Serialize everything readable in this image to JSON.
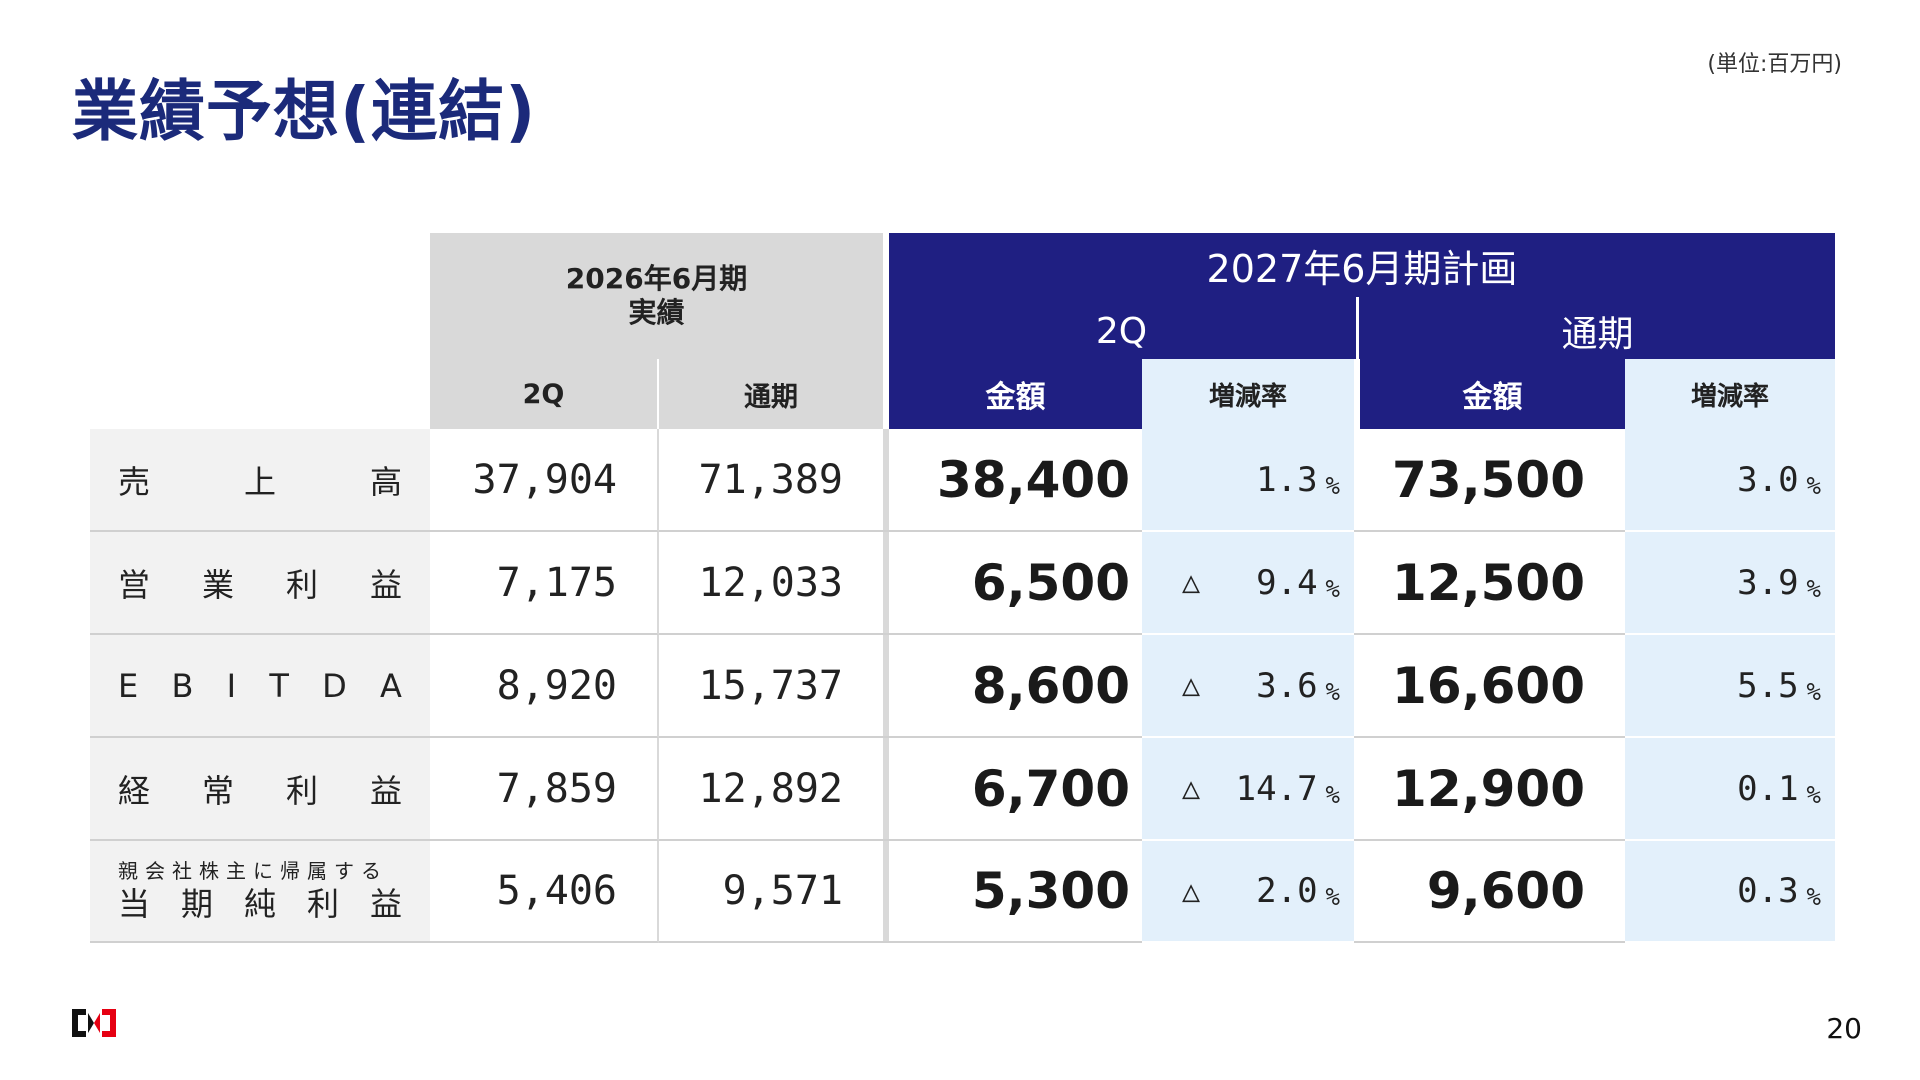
{
  "title": "業績予想(連結)",
  "unit": "(単位:百万円)",
  "page_number": "20",
  "header": {
    "fy2026_line1": "2026年6月期",
    "fy2026_line2": "実績",
    "fy2027": "2027年6月期計画",
    "q2": "2Q",
    "full_year": "通期",
    "col_2q": "2Q",
    "col_full": "通期",
    "col_amount_2q": "金額",
    "col_rate_2q": "増減率",
    "col_amount_full": "金額",
    "col_rate_full": "増減率"
  },
  "rows": [
    {
      "label_chars": [
        "売",
        "上",
        "高"
      ],
      "fy26_2q": "37,904",
      "fy26_full": "71,389",
      "fy27_2q": "38,400",
      "fy27_2q_tri": "",
      "fy27_2q_rate": "1.3",
      "fy27_full": "73,500",
      "fy27_full_rate": "3.0",
      "pct": "%"
    },
    {
      "label_chars": [
        "営",
        "業",
        "利",
        "益"
      ],
      "fy26_2q": "7,175",
      "fy26_full": "12,033",
      "fy27_2q": "6,500",
      "fy27_2q_tri": "△",
      "fy27_2q_rate": "9.4",
      "fy27_full": "12,500",
      "fy27_full_rate": "3.9",
      "pct": "%"
    },
    {
      "label_chars": [
        "E",
        "B",
        "I",
        "T",
        "D",
        "A"
      ],
      "fy26_2q": "8,920",
      "fy26_full": "15,737",
      "fy27_2q": "8,600",
      "fy27_2q_tri": "△",
      "fy27_2q_rate": "3.6",
      "fy27_full": "16,600",
      "fy27_full_rate": "5.5",
      "pct": "%"
    },
    {
      "label_chars": [
        "経",
        "常",
        "利",
        "益"
      ],
      "fy26_2q": "7,859",
      "fy26_full": "12,892",
      "fy27_2q": "6,700",
      "fy27_2q_tri": "△",
      "fy27_2q_rate": "14.7",
      "fy27_full": "12,900",
      "fy27_full_rate": "0.1",
      "pct": "%"
    },
    {
      "label_sub": "親会社株主に帰属する",
      "label_chars": [
        "当",
        "期",
        "純",
        "利",
        "益"
      ],
      "fy26_2q": "5,406",
      "fy26_full": "9,571",
      "fy27_2q": "5,300",
      "fy27_2q_tri": "△",
      "fy27_2q_rate": "2.0",
      "fy27_full": "9,600",
      "fy27_full_rate": "0.3",
      "pct": "%"
    }
  ],
  "colors": {
    "navy": "#1f1f82",
    "title": "#1b2a7a",
    "gray_header": "#d9d9d9",
    "light_blue": "#e3f0fb",
    "logo_red": "#e60012"
  }
}
